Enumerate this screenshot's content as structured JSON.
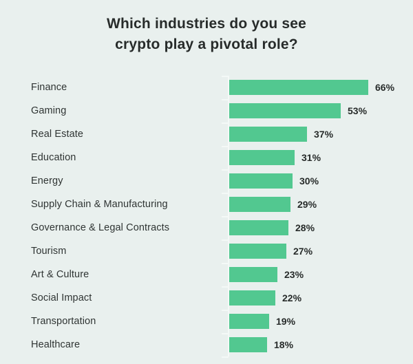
{
  "title": {
    "line1": "Which industries do you see",
    "line2": "crypto play a pivotal role?"
  },
  "chart_data": {
    "type": "bar",
    "orientation": "horizontal",
    "title": "Which industries do you see crypto play a pivotal role?",
    "categories": [
      "Finance",
      "Gaming",
      "Real Estate",
      "Education",
      "Energy",
      "Supply Chain & Manufacturing",
      "Governance & Legal Contracts",
      "Tourism",
      "Art & Culture",
      "Social Impact",
      "Transportation",
      "Healthcare"
    ],
    "values": [
      66,
      53,
      37,
      31,
      30,
      29,
      28,
      27,
      23,
      22,
      19,
      18
    ],
    "value_suffix": "%",
    "xlabel": "",
    "ylabel": "",
    "xlim": [
      0,
      70
    ],
    "grid": false,
    "legend": false,
    "colors": {
      "background": "#e9f0ee",
      "bar": "#52c890",
      "title_text": "#272b2a",
      "label_text": "#2f3433",
      "value_text": "#272b2a",
      "axis": "#f4f9f7"
    }
  }
}
